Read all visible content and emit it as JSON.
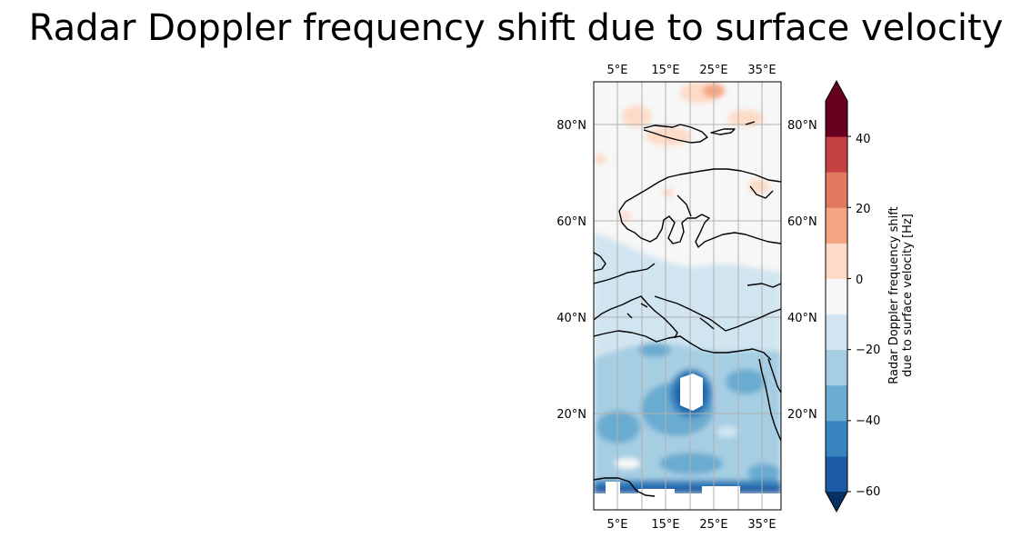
{
  "title": "Radar Doppler frequency shift due to surface velocity",
  "map": {
    "lon_ticks": [
      "5°E",
      "15°E",
      "25°E",
      "35°E"
    ],
    "lat_ticks": [
      "80°N",
      "60°N",
      "40°N",
      "20°N"
    ],
    "land_outline_color": "#000000",
    "gridline_color": "#b0b0b0",
    "missing_data_color": "#ffffff"
  },
  "colorbar": {
    "label_line1": "Radar Doppler frequency shift",
    "label_line2": "due to surface velocity [Hz]",
    "ticks": [
      "40",
      "20",
      "0",
      "−20",
      "−40",
      "−60"
    ],
    "levels": [
      -60,
      -50,
      -40,
      -30,
      -20,
      -10,
      0,
      10,
      20,
      30,
      40,
      50
    ],
    "colors": [
      "#053061",
      "#1b5ba6",
      "#3884bf",
      "#6bacd1",
      "#a6cee3",
      "#d1e5f0",
      "#f7f7f7",
      "#fddbc7",
      "#f4a582",
      "#e0795e",
      "#c64242",
      "#67001f"
    ],
    "extend": "both",
    "colormap": "RdBu_r"
  }
}
